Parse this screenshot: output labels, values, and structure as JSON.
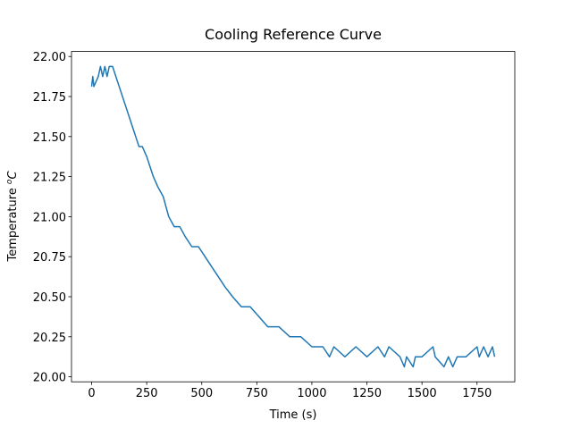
{
  "chart_data": {
    "type": "line",
    "title": "Cooling Reference Curve",
    "x_label": "Time (s)",
    "y_label": [
      "Temperature ",
      "o",
      "C"
    ],
    "x": [
      0,
      5,
      10,
      30,
      40,
      50,
      60,
      70,
      80,
      95,
      110,
      125,
      140,
      155,
      170,
      185,
      200,
      215,
      230,
      250,
      265,
      280,
      300,
      325,
      350,
      375,
      400,
      425,
      455,
      485,
      515,
      545,
      575,
      605,
      640,
      680,
      720,
      760,
      800,
      850,
      900,
      950,
      1000,
      1050,
      1080,
      1100,
      1150,
      1200,
      1250,
      1300,
      1330,
      1350,
      1400,
      1420,
      1430,
      1460,
      1470,
      1500,
      1550,
      1560,
      1600,
      1620,
      1640,
      1660,
      1700,
      1750,
      1760,
      1780,
      1800,
      1820,
      1830
    ],
    "values": [
      21.8125,
      21.875,
      21.8125,
      21.875,
      21.9375,
      21.875,
      21.9375,
      21.875,
      21.9375,
      21.9375,
      21.875,
      21.8125,
      21.75,
      21.6875,
      21.625,
      21.5625,
      21.5,
      21.4375,
      21.4375,
      21.375,
      21.3125,
      21.25,
      21.1875,
      21.125,
      21.0,
      20.9375,
      20.9375,
      20.875,
      20.8125,
      20.8125,
      20.75,
      20.6875,
      20.625,
      20.5625,
      20.5,
      20.4375,
      20.4375,
      20.375,
      20.3125,
      20.3125,
      20.25,
      20.25,
      20.1875,
      20.1875,
      20.125,
      20.1875,
      20.125,
      20.1875,
      20.125,
      20.1875,
      20.125,
      20.1875,
      20.125,
      20.0625,
      20.125,
      20.0625,
      20.125,
      20.125,
      20.1875,
      20.125,
      20.0625,
      20.125,
      20.0625,
      20.125,
      20.125,
      20.1875,
      20.125,
      20.1875,
      20.125,
      20.1875,
      20.125
    ],
    "color": "#1f77b4",
    "xlim": [
      -91.5,
      1921.5
    ],
    "xticks": [
      0,
      250,
      500,
      750,
      1000,
      1250,
      1500,
      1750
    ],
    "ylim": [
      19.96875,
      22.03125
    ],
    "yticks": [
      {
        "value": 20,
        "label": "20.00"
      },
      {
        "value": 20.25,
        "label": "20.25"
      },
      {
        "value": 20.5,
        "label": "20.50"
      },
      {
        "value": 20.75,
        "label": "20.75"
      },
      {
        "value": 21,
        "label": "21.00"
      },
      {
        "value": 21.25,
        "label": "21.25"
      },
      {
        "value": 21.5,
        "label": "21.50"
      },
      {
        "value": 21.75,
        "label": "21.75"
      },
      {
        "value": 22,
        "label": "22.00"
      }
    ]
  }
}
